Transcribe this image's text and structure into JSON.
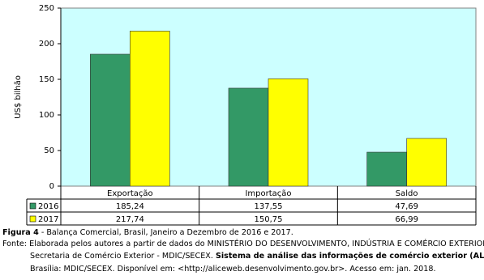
{
  "chart_data": {
    "type": "bar",
    "categories": [
      "Exportação",
      "Importação",
      "Saldo"
    ],
    "y_label": "US$ bilhão",
    "series": [
      {
        "name": "2016",
        "color": "#339966",
        "values": [
          185.24,
          137.55,
          47.69
        ],
        "value_labels": [
          "185,24",
          "137,55",
          "47,69"
        ]
      },
      {
        "name": "2017",
        "color": "#ffff00",
        "values": [
          217.74,
          150.75,
          66.99
        ],
        "value_labels": [
          "217,74",
          "150,75",
          "66,99"
        ]
      }
    ],
    "ylim": [
      0,
      250
    ],
    "yticks": [
      0,
      50,
      100,
      150,
      200,
      250
    ],
    "grid": false,
    "background": "#ccffff"
  },
  "caption": {
    "label": "Figura 4",
    "text": " - Balança Comercial, Brasil, Janeiro a Dezembro de 2016 e 2017."
  },
  "source": {
    "label": "Fonte:",
    "line1": "Elaborada pelos autores a partir de dados do MINISTÉRIO DO DESENVOLVIMENTO, INDÚSTRIA E COMÉRCIO EXTERIOR.",
    "line2": "Secretaria de Comércio Exterior - MDIC/SECEX. ",
    "line2_bold": "Sistema de análise das informações de comércio exterior (ALICE).",
    "line3": "Brasília: MDIC/SECEX. Disponível em: <http://aliceweb.desenvolvimento.gov.br>. Acesso em: jan. 2018."
  }
}
